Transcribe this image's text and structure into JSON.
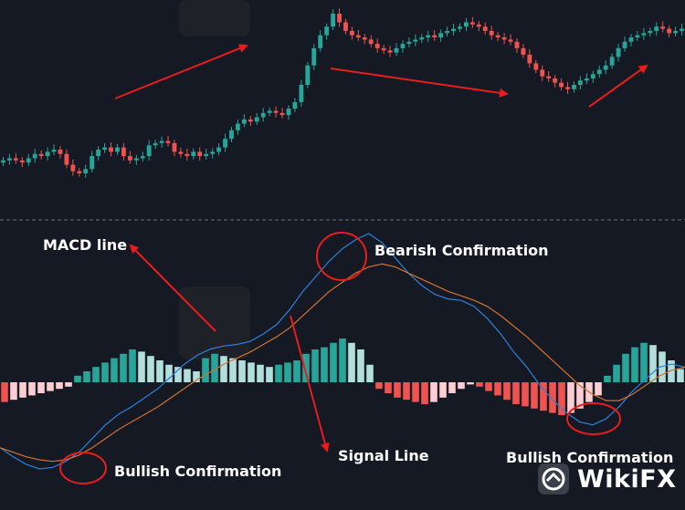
{
  "annotations": {
    "macd_line": "MACD line",
    "bearish": "Bearish Confirmation",
    "signal_line": "Signal Line",
    "bullish_left": "Bullish Confirmation",
    "bullish_right": "Bullish Confirmation"
  },
  "watermark": {
    "text": "WikiFX",
    "icon": "wikifx-logo-icon"
  },
  "colors": {
    "background": "#151924",
    "bull_candle": "#26a69a",
    "bear_candle": "#ef5350",
    "macd_line": "#2f7fd6",
    "signal_line": "#d2712f",
    "hist_strong_up": "#26a69a",
    "hist_weak_up": "#b2dfdb",
    "hist_strong_down": "#ef5350",
    "hist_weak_down": "#ffcdd2",
    "annotation": "#e81c1c"
  },
  "chart_data": [
    {
      "type": "candlestick",
      "legend": "none",
      "grid": false,
      "close": [
        60,
        61,
        60,
        59,
        61,
        63,
        62,
        64,
        65,
        63,
        58,
        55,
        54,
        56,
        62,
        65,
        66,
        64,
        66,
        62,
        60,
        61,
        62,
        67,
        68,
        69,
        68,
        64,
        63,
        62,
        64,
        62,
        63,
        64,
        66,
        70,
        74,
        77,
        79,
        78,
        80,
        82,
        83,
        82,
        81,
        84,
        87,
        95,
        104,
        112,
        118,
        122,
        128,
        124,
        120,
        118,
        117,
        116,
        114,
        112,
        111,
        110,
        112,
        114,
        115,
        116,
        117,
        118,
        117,
        119,
        120,
        121,
        122,
        124,
        123,
        122,
        120,
        118,
        117,
        116,
        115,
        112,
        109,
        105,
        102,
        99,
        98,
        96,
        94,
        93,
        95,
        97,
        98,
        100,
        102,
        104,
        108,
        112,
        115,
        117,
        118,
        119,
        120,
        122,
        121,
        119,
        120,
        121
      ]
    },
    {
      "type": "bar",
      "series_name": "histogram",
      "values": [
        -9,
        -8,
        -7,
        -6,
        -5,
        -4,
        -3,
        -2,
        3,
        5,
        7,
        9,
        11,
        13,
        15,
        14,
        12,
        10,
        8,
        7,
        6,
        5,
        11,
        13,
        12,
        11,
        10,
        9,
        8,
        7,
        8,
        9,
        10,
        13,
        15,
        16,
        18,
        20,
        18,
        15,
        8,
        -3,
        -5,
        -7,
        -8,
        -9,
        -10,
        -9,
        -7,
        -5,
        -3,
        -1,
        -2,
        -4,
        -6,
        -8,
        -10,
        -11,
        -12,
        -13,
        -14,
        -15,
        -14,
        -12,
        -9,
        -6,
        3,
        8,
        13,
        16,
        18,
        17,
        14,
        10,
        6
      ]
    },
    {
      "type": "line",
      "series": [
        {
          "name": "MACD line",
          "values": [
            -3,
            -9,
            -14,
            -17,
            -16,
            -12,
            -6,
            3,
            12,
            19,
            24,
            30,
            36,
            44,
            52,
            58,
            62,
            64,
            65,
            67,
            72,
            78,
            88,
            100,
            110,
            120,
            128,
            134,
            138,
            132,
            122,
            112,
            104,
            98,
            95,
            94,
            90,
            82,
            72,
            60,
            50,
            38,
            28,
            20,
            14,
            12,
            16,
            24,
            34,
            42,
            50,
            52,
            50
          ]
        },
        {
          "name": "Signal Line",
          "values": [
            -3,
            -6,
            -9,
            -11,
            -12,
            -11,
            -8,
            -3,
            3,
            9,
            14,
            19,
            24,
            30,
            36,
            42,
            47,
            52,
            56,
            60,
            65,
            70,
            76,
            84,
            92,
            100,
            106,
            112,
            116,
            118,
            116,
            112,
            108,
            104,
            100,
            97,
            94,
            90,
            84,
            77,
            70,
            62,
            54,
            46,
            38,
            32,
            28,
            28,
            32,
            38,
            44,
            48,
            50
          ]
        }
      ]
    }
  ]
}
